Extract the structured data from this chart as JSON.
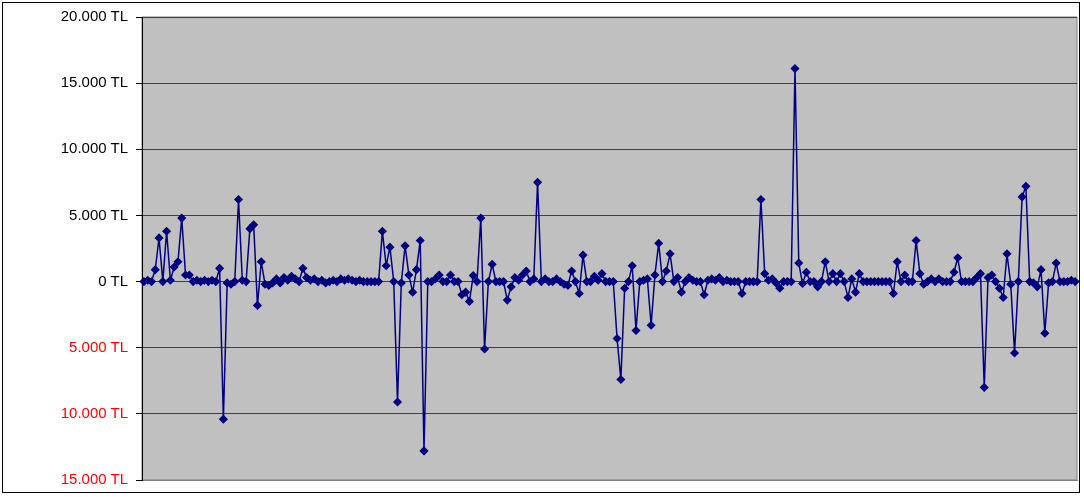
{
  "chart_data": {
    "type": "line",
    "categories": [
      null,
      null,
      null,
      null,
      null,
      null,
      null,
      null,
      null,
      null,
      null,
      null,
      null,
      null,
      null,
      null,
      null,
      null,
      null,
      null,
      null,
      null,
      null,
      null,
      null,
      null,
      null,
      null,
      null,
      null,
      null,
      null,
      null,
      null,
      null,
      null,
      null,
      null,
      null,
      null,
      null,
      null,
      null,
      null,
      null,
      null,
      null,
      null,
      null,
      null,
      null,
      null,
      null,
      null,
      null,
      null,
      null,
      null,
      null,
      null,
      null,
      null,
      null,
      null,
      null,
      null,
      null,
      null,
      null,
      null,
      null,
      null,
      null,
      null,
      null,
      null,
      null,
      null,
      null,
      null,
      null,
      null,
      null,
      null,
      null,
      null,
      null,
      null,
      null,
      null,
      null,
      null,
      null,
      null,
      null,
      null,
      null,
      null,
      null,
      null,
      null,
      null,
      null,
      null,
      null,
      null,
      null,
      null,
      null,
      null,
      null,
      null,
      null,
      null,
      null,
      null,
      null,
      null,
      null,
      null,
      null,
      null,
      null,
      null,
      null,
      null,
      null,
      null,
      null,
      null,
      null,
      null,
      null,
      null,
      null,
      null,
      null,
      null,
      null,
      null,
      null,
      null,
      null,
      null,
      null,
      null,
      null,
      null,
      null,
      null,
      null,
      null,
      null,
      null,
      null,
      null,
      null,
      null,
      null,
      null,
      null,
      null,
      null,
      null,
      null,
      null,
      null,
      null,
      null,
      null,
      null,
      null,
      null,
      null,
      null,
      null,
      null,
      null,
      null,
      null,
      null,
      null,
      null,
      null,
      null,
      null,
      null,
      null,
      null,
      null,
      null,
      null,
      null,
      null,
      null,
      null,
      null,
      null,
      null,
      null,
      null,
      null,
      null,
      null,
      null,
      null,
      null,
      null,
      null,
      null,
      null,
      null,
      null,
      null,
      null,
      null,
      null,
      null,
      null,
      null,
      null,
      null,
      null,
      null,
      null,
      null,
      null,
      null,
      null,
      null,
      null,
      null,
      null,
      null,
      null,
      null,
      null,
      null,
      null,
      null,
      null,
      null,
      null,
      null,
      null,
      null,
      null
    ],
    "series": [
      {
        "color": "#000080",
        "values": [
          0,
          100,
          0,
          900,
          3300,
          0,
          3800,
          100,
          1100,
          1500,
          4800,
          500,
          500,
          0,
          100,
          0,
          100,
          0,
          100,
          0,
          1000,
          -10400,
          -100,
          -200,
          0,
          6200,
          100,
          0,
          4000,
          4300,
          -1800,
          1500,
          -200,
          -300,
          -100,
          200,
          -100,
          300,
          100,
          400,
          200,
          0,
          1000,
          300,
          100,
          200,
          0,
          100,
          -100,
          0,
          100,
          0,
          200,
          100,
          200,
          100,
          0,
          100,
          0,
          0,
          0,
          0,
          0,
          3800,
          1200,
          2600,
          0,
          -9100,
          -100,
          2700,
          500,
          -800,
          900,
          3100,
          -12800,
          0,
          0,
          200,
          500,
          0,
          0,
          500,
          0,
          0,
          -1000,
          -800,
          -1500,
          450,
          0,
          4800,
          -5100,
          0,
          1300,
          0,
          0,
          0,
          -1400,
          -400,
          300,
          100,
          500,
          800,
          0,
          200,
          7500,
          0,
          200,
          0,
          0,
          200,
          0,
          -200,
          -300,
          800,
          0,
          -900,
          2000,
          0,
          0,
          400,
          100,
          600,
          0,
          0,
          0,
          -4300,
          -7400,
          -500,
          0,
          1200,
          -3700,
          0,
          100,
          200,
          -3300,
          500,
          2900,
          0,
          800,
          2100,
          0,
          300,
          -800,
          0,
          300,
          100,
          0,
          0,
          -1000,
          100,
          200,
          100,
          300,
          0,
          100,
          0,
          0,
          0,
          -900,
          0,
          0,
          0,
          0,
          6200,
          600,
          100,
          200,
          -100,
          -500,
          0,
          0,
          0,
          16100,
          1400,
          -150,
          700,
          0,
          0,
          -400,
          0,
          1500,
          0,
          600,
          0,
          600,
          0,
          -1200,
          200,
          -800,
          600,
          0,
          0,
          0,
          0,
          0,
          0,
          0,
          0,
          -900,
          1500,
          0,
          500,
          0,
          0,
          3100,
          600,
          -200,
          0,
          200,
          0,
          200,
          0,
          0,
          0,
          700,
          1800,
          0,
          0,
          0,
          0,
          300,
          600,
          -8000,
          300,
          500,
          0,
          -500,
          -1200,
          2100,
          -200,
          -5400,
          0,
          6400,
          7200,
          0,
          -100,
          -400,
          900,
          -3900,
          -100,
          0,
          1400,
          0,
          0,
          0,
          100,
          0
        ]
      }
    ],
    "ylim": [
      -15000,
      20000
    ],
    "yticks": [
      {
        "value": -15000,
        "label": "15.000 TL"
      },
      {
        "value": -10000,
        "label": "10.000 TL"
      },
      {
        "value": -5000,
        "label": "5.000 TL"
      },
      {
        "value": 0,
        "label": "0 TL"
      },
      {
        "value": 5000,
        "label": "5.000 TL"
      },
      {
        "value": 10000,
        "label": "10.000 TL"
      },
      {
        "value": 15000,
        "label": "15.000 TL"
      },
      {
        "value": 20000,
        "label": "20.000 TL"
      }
    ],
    "grid": "y",
    "legend": false,
    "tick_labels": "y",
    "marker": "diamond",
    "line_style": "solid"
  }
}
